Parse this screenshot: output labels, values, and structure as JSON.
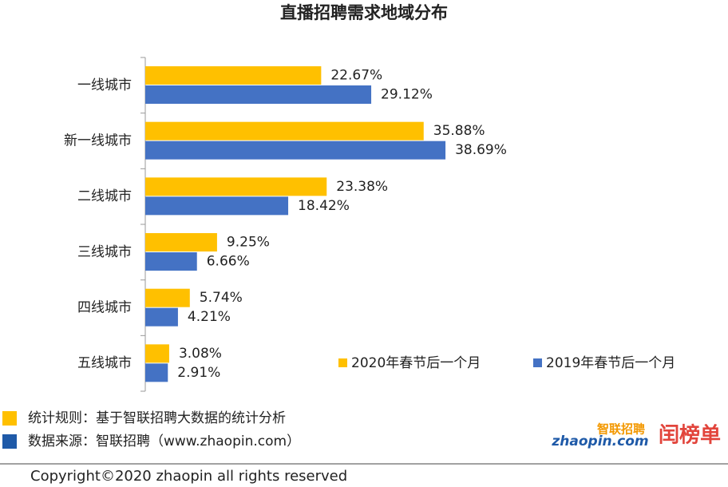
{
  "chart_data": {
    "type": "bar",
    "orientation": "horizontal",
    "title": "直播招聘需求地域分布",
    "categories": [
      "一线城市",
      "新一线城市",
      "二线城市",
      "三线城市",
      "四线城市",
      "五线城市"
    ],
    "series": [
      {
        "name": "2020年春节后一个月",
        "color": "#FFC000",
        "values": [
          22.67,
          35.88,
          23.38,
          9.25,
          5.74,
          3.08
        ],
        "value_labels": [
          "22.67%",
          "35.88%",
          "23.38%",
          "9.25%",
          "5.74%",
          "3.08%"
        ]
      },
      {
        "name": "2019年春节后一个月",
        "color": "#4472C4",
        "values": [
          29.12,
          38.69,
          18.42,
          6.66,
          4.21,
          2.91
        ],
        "value_labels": [
          "29.12%",
          "38.69%",
          "18.42%",
          "6.66%",
          "4.21%",
          "2.91%"
        ]
      }
    ]
  },
  "footer": {
    "notes": [
      {
        "text": "统计规则：基于智联招聘大数据的统计分析",
        "color": "#FFC000"
      },
      {
        "text": "数据来源：智联招聘（www.zhaopin.com）",
        "color": "#1F5AA8"
      }
    ],
    "logos": [
      "智联招聘",
      "zhaopin.com",
      "闰榜单"
    ],
    "copyright": "Copyright©2020 zhaopin all rights reserved"
  }
}
